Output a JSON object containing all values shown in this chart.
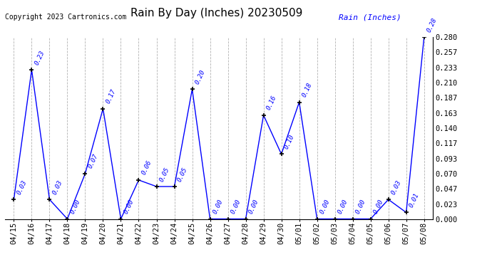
{
  "title": "Rain By Day (Inches) 20230509",
  "copyright": "Copyright 2023 Cartronics.com",
  "legend_label": "Rain (Inches)",
  "dates": [
    "04/15",
    "04/16",
    "04/17",
    "04/18",
    "04/19",
    "04/20",
    "04/21",
    "04/22",
    "04/23",
    "04/24",
    "04/25",
    "04/26",
    "04/27",
    "04/28",
    "04/29",
    "04/30",
    "05/01",
    "05/02",
    "05/03",
    "05/04",
    "05/05",
    "05/06",
    "05/07",
    "05/08"
  ],
  "values": [
    0.03,
    0.23,
    0.03,
    0.0,
    0.07,
    0.17,
    0.0,
    0.06,
    0.05,
    0.05,
    0.2,
    0.0,
    0.0,
    0.0,
    0.16,
    0.1,
    0.18,
    0.0,
    0.0,
    0.0,
    0.0,
    0.03,
    0.01,
    0.28
  ],
  "line_color": "blue",
  "marker_color": "black",
  "label_color": "blue",
  "title_fontsize": 11,
  "copyright_fontsize": 7,
  "label_fontsize": 6.5,
  "tick_fontsize": 7.5,
  "legend_fontsize": 8,
  "ylim_min": 0.0,
  "ylim_max": 0.28,
  "yticks": [
    0.0,
    0.023,
    0.047,
    0.07,
    0.093,
    0.117,
    0.14,
    0.163,
    0.187,
    0.21,
    0.233,
    0.257,
    0.28
  ],
  "background_color": "white",
  "grid_color": "#aaaaaa"
}
